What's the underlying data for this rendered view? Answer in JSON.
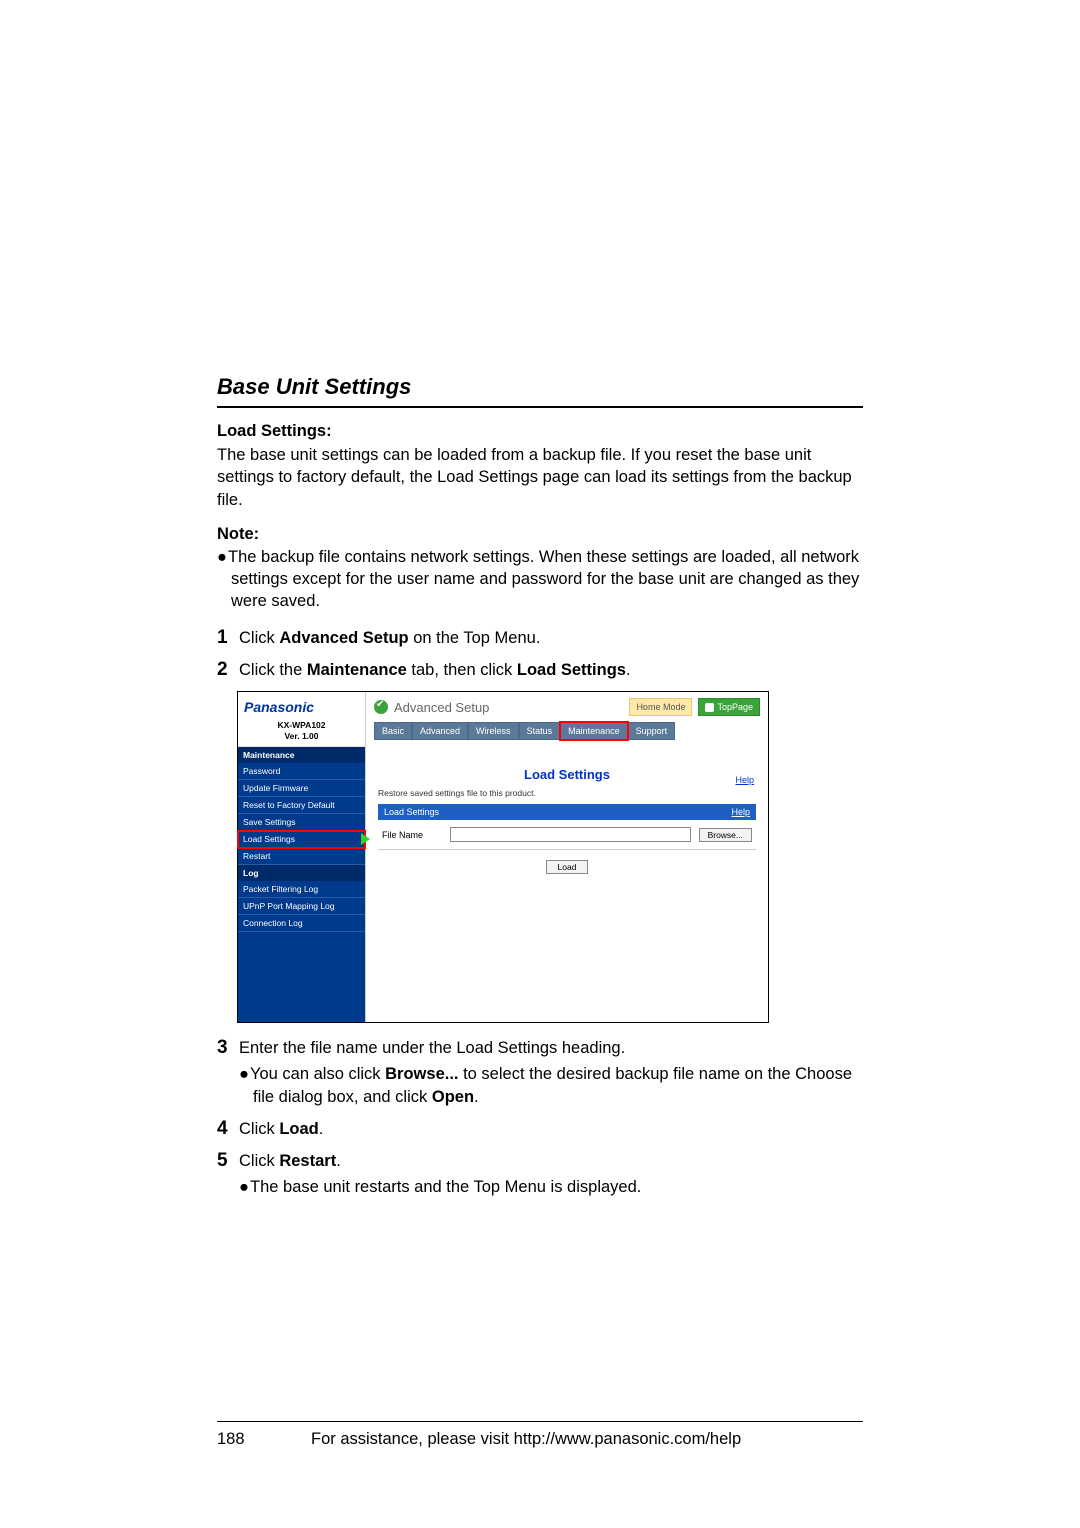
{
  "page": {
    "section_title": "Base Unit Settings",
    "load_settings_heading": "Load Settings:",
    "load_settings_text": "The base unit settings can be loaded from a backup file. If you reset the base unit settings to factory default, the Load Settings page can load its settings from the backup file.",
    "note_label": "Note:",
    "note_text": "The backup file contains network settings. When these settings are loaded, all network settings except for the user name and password for the base unit are changed as they were saved.",
    "steps": {
      "s1_pre": "Click ",
      "s1_bold": "Advanced Setup",
      "s1_post": " on the Top Menu.",
      "s2_pre": "Click the ",
      "s2_bold1": "Maintenance",
      "s2_mid": " tab, then click ",
      "s2_bold2": "Load Settings",
      "s2_post": ".",
      "s3": "Enter the file name under the Load Settings heading.",
      "s3_sub_pre": "You can also click ",
      "s3_sub_bold1": "Browse...",
      "s3_sub_mid": " to select the desired backup file name on the Choose file dialog box, and click ",
      "s3_sub_bold2": "Open",
      "s3_sub_post": ".",
      "s4_pre": "Click ",
      "s4_bold": "Load",
      "s4_post": ".",
      "s5_pre": "Click ",
      "s5_bold": "Restart",
      "s5_post": ".",
      "s5_sub": "The base unit restarts and the Top Menu is displayed."
    }
  },
  "screenshot": {
    "brand": "Panasonic",
    "model": "KX-WPA102",
    "version": "Ver. 1.00",
    "side_heading1": "Maintenance",
    "side_items1": [
      "Password",
      "Update Firmware",
      "Reset to Factory Default",
      "Save Settings",
      "Load Settings",
      "Restart"
    ],
    "side_heading2": "Log",
    "side_items2": [
      "Packet Filtering Log",
      "UPnP Port Mapping Log",
      "Connection Log"
    ],
    "adv_title": "Advanced Setup",
    "home_mode": "Home Mode",
    "top_page": "TopPage",
    "tabs": [
      "Basic",
      "Advanced",
      "Wireless",
      "Status",
      "Maintenance",
      "Support"
    ],
    "content_title": "Load Settings",
    "help": "Help",
    "desc": "Restore saved settings file to this product.",
    "blue_bar": "Load Settings",
    "file_label": "File Name",
    "browse": "Browse...",
    "load": "Load"
  },
  "footer": {
    "page_number": "188",
    "text": "For assistance, please visit http://www.panasonic.com/help"
  },
  "colors": {
    "brand_blue": "#0033a0",
    "sidebar_bg": "#003a8c",
    "sidebar_heading_bg": "#002b6b",
    "tab_bg": "#5b7a99",
    "highlight_red": "#ff0000",
    "green_arrow": "#2dd62d",
    "toppage_green": "#3aa33a",
    "home_mode_bg": "#ffe9a8",
    "link_blue": "#0033cc",
    "bluebar": "#1d5fc2"
  }
}
